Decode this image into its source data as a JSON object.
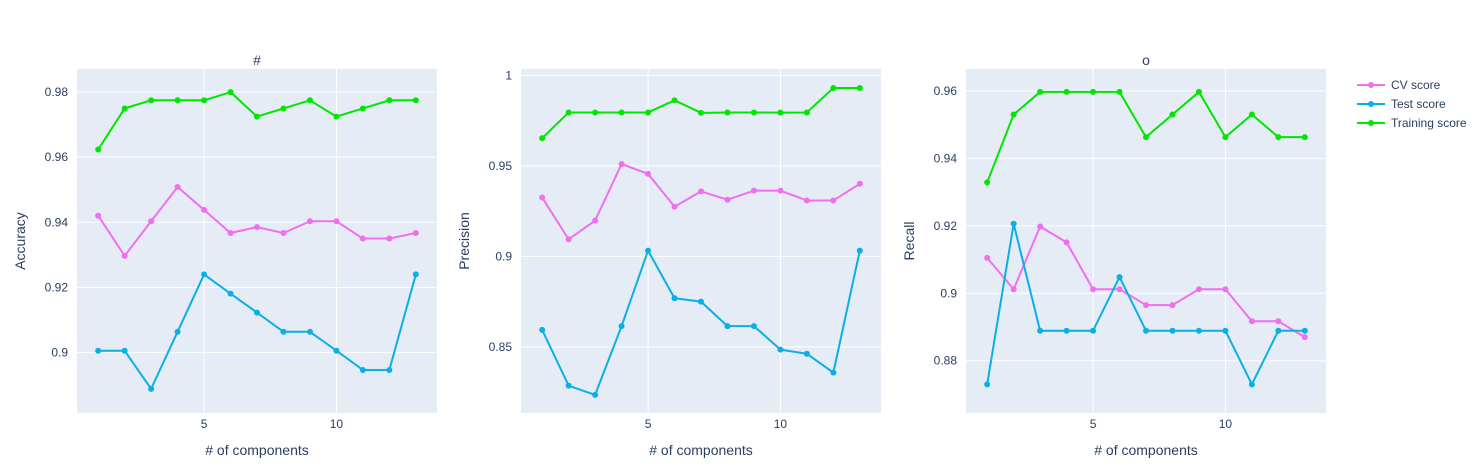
{
  "chart_data": [
    {
      "type": "line",
      "title": "#",
      "xlabel": "# of components",
      "ylabel": "Accuracy",
      "xlim": [
        0.2,
        13.8
      ],
      "ylim": [
        0.8815,
        0.987
      ],
      "xticks": [
        5,
        10
      ],
      "yticks": [
        0.9,
        0.92,
        0.94,
        0.96,
        0.98
      ],
      "ytick_labels": [
        "0.9",
        "0.92",
        "0.94",
        "0.96",
        "0.98"
      ],
      "grid": true,
      "x": [
        1,
        2,
        3,
        4,
        5,
        6,
        7,
        8,
        9,
        10,
        11,
        12,
        13
      ],
      "series": [
        {
          "name": "CV score",
          "values": [
            0.942,
            0.9297,
            0.9403,
            0.9508,
            0.9438,
            0.9367,
            0.9385,
            0.9367,
            0.9403,
            0.9403,
            0.935,
            0.935,
            0.9367
          ]
        },
        {
          "name": "Test score",
          "values": [
            0.9006,
            0.9006,
            0.8889,
            0.9064,
            0.924,
            0.9181,
            0.9123,
            0.9064,
            0.9064,
            0.9006,
            0.8947,
            0.8947,
            0.924
          ]
        },
        {
          "name": "Training score",
          "values": [
            0.9623,
            0.9749,
            0.9774,
            0.9774,
            0.9774,
            0.9799,
            0.9724,
            0.9749,
            0.9774,
            0.9724,
            0.9749,
            0.9774,
            0.9774
          ]
        }
      ]
    },
    {
      "type": "line",
      "title": "",
      "xlabel": "# of components",
      "ylabel": "Precision",
      "xlim": [
        0.2,
        13.8
      ],
      "ylim": [
        0.8135,
        1.0035
      ],
      "xticks": [
        5,
        10
      ],
      "yticks": [
        0.85,
        0.9,
        0.95,
        1.0
      ],
      "ytick_labels": [
        "0.85",
        "0.9",
        "0.95",
        "1"
      ],
      "grid": true,
      "x": [
        1,
        2,
        3,
        4,
        5,
        6,
        7,
        8,
        9,
        10,
        11,
        12,
        13
      ],
      "series": [
        {
          "name": "CV score",
          "values": [
            0.9325,
            0.9094,
            0.9198,
            0.951,
            0.9456,
            0.9274,
            0.9359,
            0.9313,
            0.9363,
            0.9363,
            0.9309,
            0.9309,
            0.9401
          ]
        },
        {
          "name": "Test score",
          "values": [
            0.8594,
            0.8286,
            0.8235,
            0.8615,
            0.9032,
            0.8769,
            0.875,
            0.8615,
            0.8615,
            0.8485,
            0.8462,
            0.8358,
            0.9032
          ]
        },
        {
          "name": "Training score",
          "values": [
            0.9653,
            0.9795,
            0.9795,
            0.9795,
            0.9795,
            0.9862,
            0.9793,
            0.9795,
            0.9795,
            0.9794,
            0.9795,
            0.993,
            0.993
          ]
        }
      ]
    },
    {
      "type": "line",
      "title": "o",
      "xlabel": "# of components",
      "ylabel": "Recall",
      "xlim": [
        0.2,
        13.8
      ],
      "ylim": [
        0.8645,
        0.9665
      ],
      "xticks": [
        5,
        10
      ],
      "yticks": [
        0.88,
        0.9,
        0.92,
        0.94,
        0.96
      ],
      "ytick_labels": [
        "0.88",
        "0.9",
        "0.92",
        "0.94",
        "0.96"
      ],
      "grid": true,
      "x": [
        1,
        2,
        3,
        4,
        5,
        6,
        7,
        8,
        9,
        10,
        11,
        12,
        13
      ],
      "series": [
        {
          "name": "CV score",
          "values": [
            0.9105,
            0.9012,
            0.9198,
            0.9151,
            0.9012,
            0.9012,
            0.8965,
            0.8965,
            0.9012,
            0.9012,
            0.8917,
            0.8917,
            0.887
          ]
        },
        {
          "name": "Test score",
          "values": [
            0.873,
            0.9206,
            0.8889,
            0.8889,
            0.8889,
            0.9048,
            0.8889,
            0.8889,
            0.8889,
            0.8889,
            0.873,
            0.8889,
            0.8889
          ]
        },
        {
          "name": "Training score",
          "values": [
            0.9329,
            0.953,
            0.9597,
            0.9597,
            0.9597,
            0.9597,
            0.9463,
            0.953,
            0.9597,
            0.9463,
            0.953,
            0.9463,
            0.9463
          ]
        }
      ]
    }
  ],
  "legend": {
    "placement": "top-right",
    "items": [
      {
        "label": "CV score",
        "color": "#EF6FF0"
      },
      {
        "label": "Test score",
        "color": "#0AAFE6"
      },
      {
        "label": "Training score",
        "color": "#00E600"
      }
    ]
  },
  "colors": {
    "plot_background": "#E5ECF6",
    "grid": "#FFFFFF",
    "text": "#2a3f5f",
    "series": [
      "#EF6FF0",
      "#0AAFE6",
      "#00E600"
    ]
  }
}
